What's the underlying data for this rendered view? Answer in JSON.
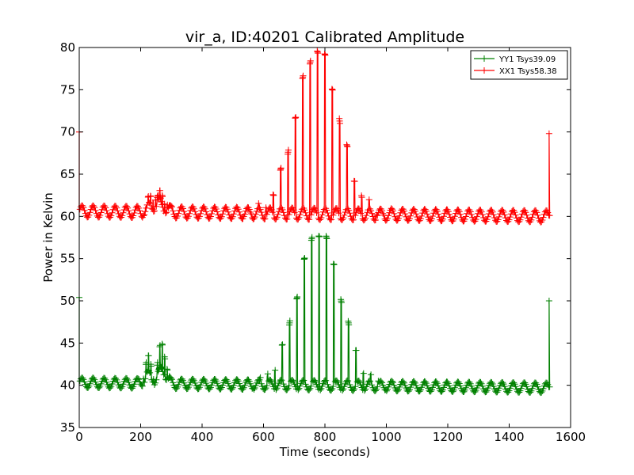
{
  "chart_data": {
    "type": "line",
    "title": "vir_a, ID:40201 Calibrated Amplitude",
    "xlabel": "Time (seconds)",
    "ylabel": "Power in Kelvin",
    "xlim": [
      0,
      1600
    ],
    "ylim": [
      35,
      80
    ],
    "x_ticks": [
      0,
      200,
      400,
      600,
      800,
      1000,
      1200,
      1400,
      1600
    ],
    "y_ticks": [
      35,
      40,
      45,
      50,
      55,
      60,
      65,
      70,
      75,
      80
    ],
    "grid": false,
    "legend_position": "top-right",
    "marker": "+",
    "series": [
      {
        "name": "YY1 Tsys39.09",
        "color": "#008000",
        "baseline": 40.3,
        "ripple": 0.6,
        "ripple_period_s": 36,
        "start_spike": 50.4,
        "end_spike": 50.0,
        "end_time": 1530,
        "peaks": [
          {
            "center": 780,
            "height": 58.5,
            "width": 70
          },
          {
            "center": 270,
            "height": 45.0,
            "width": 12
          },
          {
            "center": 225,
            "height": 43.0,
            "width": 12
          }
        ]
      },
      {
        "name": "XX1 Tsys58.38",
        "color": "#ff0000",
        "baseline": 60.6,
        "ripple": 0.7,
        "ripple_period_s": 36,
        "start_spike": 70.0,
        "end_spike": 69.8,
        "end_time": 1530,
        "peaks": [
          {
            "center": 775,
            "height": 80.0,
            "width": 70
          },
          {
            "center": 270,
            "height": 62.5,
            "width": 15
          },
          {
            "center": 240,
            "height": 62.5,
            "width": 15
          }
        ]
      }
    ]
  }
}
